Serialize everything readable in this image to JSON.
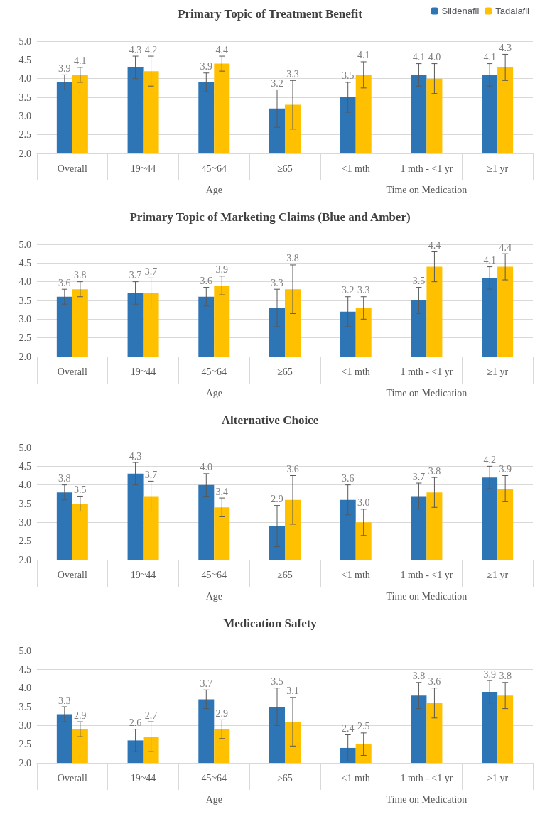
{
  "chart_data": [
    {
      "type": "bar",
      "title": "Primary Topic of Treatment Benefit",
      "categories": [
        "Overall",
        "19~44",
        "45~64",
        "≥65",
        "<1 mth",
        "1 mth - <1 yr",
        "≥1 yr"
      ],
      "annotations": [
        "Age",
        "Time on Medication"
      ],
      "legend": "top right",
      "grid": "y",
      "ylim": [
        2,
        5
      ],
      "yticks": [
        {
          "value": 2,
          "label": "2.0"
        },
        {
          "value": 2.5,
          "label": "2.5"
        },
        {
          "value": 3,
          "label": "3.0"
        },
        {
          "value": 3.5,
          "label": "3.5"
        },
        {
          "value": 4,
          "label": "4.0"
        },
        {
          "value": 4.5,
          "label": "4.5"
        },
        {
          "value": 5,
          "label": "5.0"
        }
      ],
      "series": [
        {
          "name": "Sildenafil",
          "color": "#2e75b6",
          "values": [
            3.9,
            4.3,
            3.9,
            3.2,
            3.5,
            4.1,
            4.1
          ],
          "value_labels": [
            "3.9",
            "4.3",
            "3.9",
            "3.2",
            "3.5",
            "4.1",
            "4.1"
          ],
          "errors": [
            0.2,
            0.3,
            0.25,
            0.5,
            0.4,
            0.3,
            0.3
          ]
        },
        {
          "name": "Tadalafil",
          "color": "#ffc000",
          "values": [
            4.1,
            4.2,
            4.4,
            3.3,
            4.1,
            4.0,
            4.3
          ],
          "value_labels": [
            "4.1",
            "4.2",
            "4.4",
            "3.3",
            "4.1",
            "4.0",
            "4.3"
          ],
          "errors": [
            0.2,
            0.4,
            0.2,
            0.65,
            0.35,
            0.4,
            0.35
          ]
        }
      ]
    },
    {
      "type": "bar",
      "title": "Primary Topic of Marketing Claims (Blue and Amber)",
      "categories": [
        "Overall",
        "19~44",
        "45~64",
        "≥65",
        "<1 mth",
        "1 mth - <1 yr",
        "≥1 yr"
      ],
      "annotations": [
        "Age",
        "Time on Medication"
      ],
      "grid": "y",
      "ylim": [
        2,
        5
      ],
      "yticks": [
        {
          "value": 2,
          "label": "2.0"
        },
        {
          "value": 2.5,
          "label": "2.5"
        },
        {
          "value": 3,
          "label": "3.0"
        },
        {
          "value": 3.5,
          "label": "3.5"
        },
        {
          "value": 4,
          "label": "4.0"
        },
        {
          "value": 4.5,
          "label": "4.5"
        },
        {
          "value": 5,
          "label": "5.0"
        }
      ],
      "series": [
        {
          "color": "#2e75b6",
          "values": [
            3.6,
            3.7,
            3.6,
            3.3,
            3.2,
            3.5,
            4.1
          ],
          "value_labels": [
            "3.6",
            "3.7",
            "3.6",
            "3.3",
            "3.2",
            "3.5",
            "4.1"
          ],
          "errors": [
            0.2,
            0.3,
            0.25,
            0.5,
            0.4,
            0.35,
            0.3
          ]
        },
        {
          "color": "#ffc000",
          "values": [
            3.8,
            3.7,
            3.9,
            3.8,
            3.3,
            4.4,
            4.4
          ],
          "value_labels": [
            "3.8",
            "3.7",
            "3.9",
            "3.8",
            "3.3",
            "4.4",
            "4.4"
          ],
          "errors": [
            0.2,
            0.4,
            0.25,
            0.65,
            0.3,
            0.4,
            0.35
          ]
        }
      ]
    },
    {
      "type": "bar",
      "title": "Alternative Choice",
      "categories": [
        "Overall",
        "19~44",
        "45~64",
        "≥65",
        "<1 mth",
        "1 mth - <1 yr",
        "≥1 yr"
      ],
      "annotations": [
        "Age",
        "Time on Medication"
      ],
      "grid": "y",
      "ylim": [
        2,
        5
      ],
      "yticks": [
        {
          "value": 2,
          "label": "2.0"
        },
        {
          "value": 2.5,
          "label": "2.5"
        },
        {
          "value": 3,
          "label": "3.0"
        },
        {
          "value": 3.5,
          "label": "3.5"
        },
        {
          "value": 4,
          "label": "4.0"
        },
        {
          "value": 4.5,
          "label": "4.5"
        },
        {
          "value": 5,
          "label": "5.0"
        }
      ],
      "series": [
        {
          "color": "#2e75b6",
          "values": [
            3.8,
            4.3,
            4.0,
            2.9,
            3.6,
            3.7,
            4.2
          ],
          "value_labels": [
            "3.8",
            "4.3",
            "4.0",
            "2.9",
            "3.6",
            "3.7",
            "4.2"
          ],
          "errors": [
            0.2,
            0.3,
            0.3,
            0.55,
            0.4,
            0.35,
            0.3
          ]
        },
        {
          "color": "#ffc000",
          "values": [
            3.5,
            3.7,
            3.4,
            3.6,
            3.0,
            3.8,
            3.9
          ],
          "value_labels": [
            "3.5",
            "3.7",
            "3.4",
            "3.6",
            "3.0",
            "3.8",
            "3.9"
          ],
          "errors": [
            0.2,
            0.4,
            0.25,
            0.65,
            0.35,
            0.4,
            0.35
          ]
        }
      ]
    },
    {
      "type": "bar",
      "title": "Medication Safety",
      "categories": [
        "Overall",
        "19~44",
        "45~64",
        "≥65",
        "<1 mth",
        "1 mth - <1 yr",
        "≥1 yr"
      ],
      "annotations": [
        "Age",
        "Time on Medication"
      ],
      "grid": "y",
      "ylim": [
        2,
        5
      ],
      "yticks": [
        {
          "value": 2,
          "label": "2.0"
        },
        {
          "value": 2.5,
          "label": "2.5"
        },
        {
          "value": 3,
          "label": "3.0"
        },
        {
          "value": 3.5,
          "label": "3.5"
        },
        {
          "value": 4,
          "label": "4.0"
        },
        {
          "value": 4.5,
          "label": "4.5"
        },
        {
          "value": 5,
          "label": "5.0"
        }
      ],
      "series": [
        {
          "color": "#2e75b6",
          "values": [
            3.3,
            2.6,
            3.7,
            3.5,
            2.4,
            3.8,
            3.9
          ],
          "value_labels": [
            "3.3",
            "2.6",
            "3.7",
            "3.5",
            "2.4",
            "3.8",
            "3.9"
          ],
          "errors": [
            0.2,
            0.3,
            0.25,
            0.5,
            0.35,
            0.35,
            0.3
          ]
        },
        {
          "color": "#ffc000",
          "values": [
            2.9,
            2.7,
            2.9,
            3.1,
            2.5,
            3.6,
            3.8
          ],
          "value_labels": [
            "2.9",
            "2.7",
            "2.9",
            "3.1",
            "2.5",
            "3.6",
            "3.8"
          ],
          "errors": [
            0.2,
            0.4,
            0.25,
            0.65,
            0.3,
            0.4,
            0.35
          ]
        }
      ]
    }
  ]
}
